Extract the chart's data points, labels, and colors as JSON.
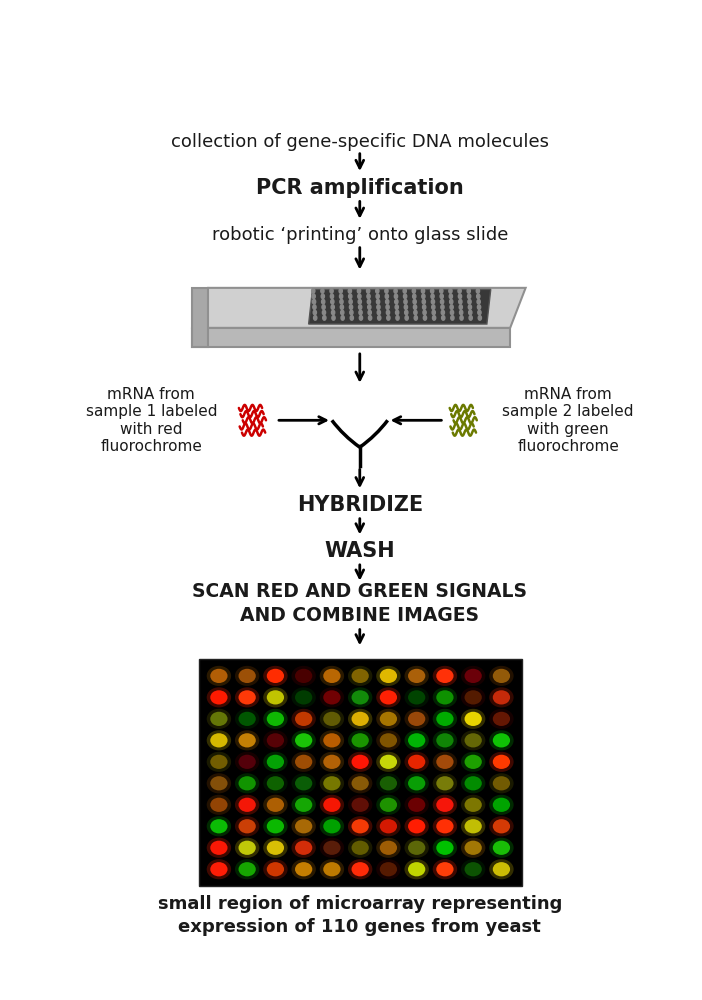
{
  "bg_color": "#ffffff",
  "text_color": "#1a1a1a",
  "step1_text": "collection of gene-specific DNA molecules",
  "step2_text": "PCR amplification",
  "step3_text": "robotic ‘printing’ onto glass slide",
  "hybridize_text": "HYBRIDIZE",
  "wash_text": "WASH",
  "scan_text": "SCAN RED AND GREEN SIGNALS\nAND COMBINE IMAGES",
  "caption_text": "small region of microarray representing\nexpression of 110 genes from yeast",
  "left_label": "mRNA from\nsample 1 labeled\nwith red\nfluorochrome",
  "right_label": "mRNA from\nsample 2 labeled\nwith green\nfluorochrome",
  "red_color": "#cc0000",
  "green_color": "#6b7a00",
  "slide_color": "#c8c8c8",
  "font_size_main": 13,
  "font_size_bold": 14,
  "font_size_caption": 13,
  "fig_w": 7.02,
  "fig_h": 10.0
}
